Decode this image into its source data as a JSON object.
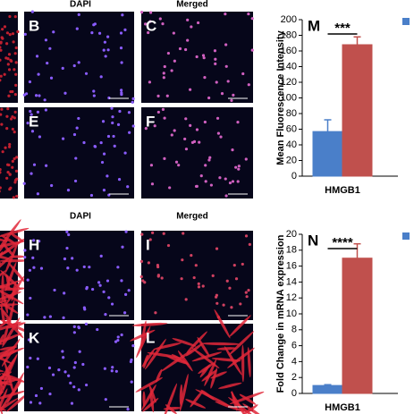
{
  "panels": {
    "headers": [
      "DAPI",
      "Merged",
      "DAPI",
      "Merged"
    ],
    "labels": [
      "B",
      "C",
      "E",
      "F",
      "H",
      "I",
      "K",
      "L"
    ]
  },
  "chart_data": [
    {
      "type": "bar",
      "panel_label": "M",
      "annotation": "***",
      "y_label": "Mean Fluorescence Intensity",
      "categories": [
        "HMGB1"
      ],
      "series": [
        {
          "color": "#4a7fc9",
          "values": [
            57
          ],
          "errors": [
            15
          ]
        },
        {
          "color": "#c0504d",
          "values": [
            168
          ],
          "errors": [
            10
          ]
        }
      ],
      "ylim": [
        0,
        200
      ],
      "yticks": [
        0,
        20,
        40,
        60,
        80,
        100,
        120,
        140,
        160,
        180,
        200
      ],
      "legend": "upper right"
    },
    {
      "type": "bar",
      "panel_label": "N",
      "annotation": "****",
      "y_label": "Fold Change in mRNA expression",
      "categories": [
        "HMGB1"
      ],
      "series": [
        {
          "color": "#4a7fc9",
          "values": [
            1
          ],
          "errors": [
            0.1
          ]
        },
        {
          "color": "#c0504d",
          "values": [
            17
          ],
          "errors": [
            1.8
          ]
        }
      ],
      "ylim": [
        0,
        20
      ],
      "yticks": [
        0,
        2,
        4,
        6,
        8,
        10,
        12,
        14,
        16,
        18,
        20
      ],
      "legend": "upper right"
    }
  ]
}
